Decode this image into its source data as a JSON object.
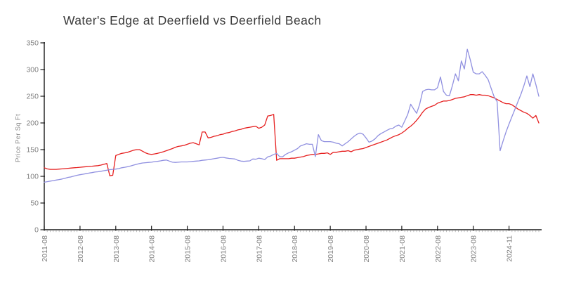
{
  "colors": {
    "red_series": "#e62020",
    "blue_series": "#9090e0",
    "axis": "#1a1a1a",
    "tick_label": "#808080",
    "minor_tick": "#b5b5b5",
    "title_text": "#3a3a3a"
  },
  "chart_data": {
    "type": "line",
    "title": "Water's Edge at Deerfield vs Deerfield Beach",
    "xlabel": "",
    "ylabel": "Price Per Sq Ft",
    "ylim": [
      0,
      350
    ],
    "yticks": [
      0,
      50,
      100,
      150,
      200,
      250,
      300,
      350
    ],
    "grid": false,
    "legend": "none",
    "x_unit": "monthly points starting 2011-08, one per index",
    "x_tick_every": 12,
    "x_tick_labels": [
      "2011-08",
      "2012-08",
      "2013-08",
      "2014-08",
      "2015-08",
      "2016-08",
      "2017-08",
      "2018-08",
      "2019-08",
      "2020-08",
      "2021-08",
      "2022-08",
      "2023-08",
      "2024-11"
    ],
    "series": [
      {
        "name": "Water's Edge at Deerfield",
        "color": "#e62020",
        "values": [
          116,
          114,
          113,
          113,
          113,
          113.5,
          114,
          114.5,
          115,
          115.5,
          116,
          116.5,
          117,
          117.5,
          118,
          118.5,
          119,
          119.5,
          120,
          121,
          122.5,
          124,
          101,
          102,
          139,
          141,
          143,
          144,
          145,
          147,
          149,
          150,
          150,
          147,
          144,
          142,
          141,
          142,
          143,
          144.5,
          146,
          148,
          150,
          152,
          154.5,
          156,
          157,
          158,
          160,
          162,
          163,
          161,
          159,
          183,
          183,
          172,
          173,
          175,
          176,
          178,
          179,
          181,
          182,
          184,
          185,
          187,
          188,
          190,
          191,
          192,
          193,
          194,
          190,
          192,
          196,
          213,
          214,
          216,
          130,
          133,
          133,
          133,
          133,
          134,
          134,
          135,
          136,
          137,
          139,
          140,
          141,
          141,
          142,
          143,
          143,
          144,
          141,
          145,
          145,
          146,
          147,
          147,
          148,
          146,
          149,
          150,
          151,
          152,
          154,
          156,
          158,
          160,
          162,
          164,
          166,
          168,
          171,
          174,
          176,
          178,
          181,
          185,
          190,
          194,
          199,
          205,
          212,
          220,
          226,
          229,
          231,
          233,
          237,
          239,
          241,
          241,
          242,
          244,
          246,
          247,
          248,
          249,
          251,
          253,
          253,
          252,
          253,
          252,
          252,
          251,
          249,
          247,
          244,
          241,
          238,
          236,
          236,
          234,
          230,
          226,
          223,
          220,
          218,
          214,
          209,
          214,
          200
        ]
      },
      {
        "name": "Deerfield Beach",
        "color": "#9090e0",
        "values": [
          89,
          90,
          91,
          92,
          93,
          94,
          95,
          96.5,
          98,
          99,
          100.5,
          102,
          103,
          104,
          105,
          106,
          107,
          108,
          108.5,
          109.5,
          110.5,
          111.5,
          112.5,
          113,
          113.5,
          114.5,
          116,
          117,
          118,
          119.5,
          121,
          122.5,
          124,
          125,
          125.5,
          126,
          126.5,
          127.5,
          128,
          129,
          130,
          130.5,
          128.5,
          126.5,
          126,
          126.5,
          127,
          127,
          127,
          127.5,
          128,
          128.5,
          129,
          130,
          130.5,
          131,
          132,
          133,
          134,
          135,
          135.5,
          134.5,
          133.5,
          133,
          132.5,
          130,
          128.5,
          128,
          128.5,
          129,
          132.5,
          132,
          134,
          133,
          131.5,
          136.5,
          138,
          141,
          143,
          137,
          136.5,
          141,
          144,
          146,
          149,
          152,
          157,
          159,
          161,
          160,
          160,
          137,
          178,
          167,
          165,
          165,
          165,
          164,
          162,
          161,
          157,
          161,
          165,
          170,
          175,
          179,
          181,
          179,
          172,
          164,
          166,
          170,
          176,
          180,
          183,
          186,
          189,
          190,
          194,
          196,
          192,
          204,
          216,
          235,
          226,
          218,
          235,
          259,
          262,
          263,
          262,
          262,
          266,
          286,
          259,
          252,
          251,
          270,
          292,
          279,
          316,
          301,
          338,
          318,
          295,
          292,
          292,
          296,
          289,
          281,
          265,
          249,
          240,
          148,
          166,
          183,
          198,
          212,
          226,
          240,
          254,
          270,
          288,
          268,
          292,
          272,
          250
        ]
      }
    ]
  }
}
